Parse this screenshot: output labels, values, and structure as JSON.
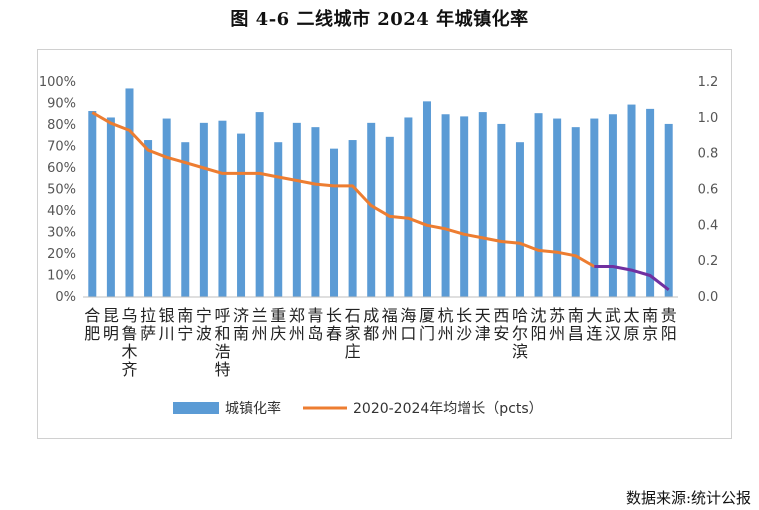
{
  "figure": {
    "title": "图 4-6   二线城市 2024 年城镇化率",
    "source": "数据来源:统计公报"
  },
  "colors": {
    "bar": "#5b9bd5",
    "line": "#ed7d31",
    "line_highlight": "#7030a0",
    "axis": "#bfbfbf"
  },
  "chart_data": {
    "type": "bar+line",
    "categories": [
      "合肥",
      "昆明",
      "乌鲁木齐",
      "拉萨",
      "银川",
      "南宁",
      "宁波",
      "呼和浩特",
      "济南",
      "兰州",
      "重庆",
      "郑州",
      "青岛",
      "长春",
      "石家庄",
      "成都",
      "福州",
      "海口",
      "厦门",
      "杭州",
      "长沙",
      "天津",
      "西安",
      "哈尔滨",
      "沈阳",
      "苏州",
      "南昌",
      "大连",
      "武汉",
      "太原",
      "南京",
      "贵阳"
    ],
    "series": [
      {
        "name": "城镇化率",
        "type": "bar",
        "axis": "left",
        "values": [
          86.5,
          83.5,
          97,
          73,
          83,
          72,
          81,
          82,
          76,
          86,
          72,
          81,
          79,
          69,
          73,
          81,
          74.5,
          83.5,
          91,
          85,
          84,
          86,
          80.5,
          72,
          85.5,
          83,
          79,
          83,
          85,
          89.5,
          87.5,
          80.5
        ]
      },
      {
        "name": "2020-2024年均增长（pcts）",
        "type": "line",
        "axis": "right",
        "values": [
          1.03,
          0.97,
          0.93,
          0.82,
          0.78,
          0.75,
          0.72,
          0.69,
          0.69,
          0.69,
          0.67,
          0.65,
          0.63,
          0.62,
          0.62,
          0.51,
          0.45,
          0.44,
          0.4,
          0.38,
          0.35,
          0.33,
          0.31,
          0.3,
          0.26,
          0.25,
          0.23,
          0.17,
          0.17,
          0.15,
          0.12,
          0.04
        ],
        "highlight_from_index": 27
      }
    ],
    "y_left": {
      "ticks": [
        "0%",
        "10%",
        "20%",
        "30%",
        "40%",
        "50%",
        "60%",
        "70%",
        "80%",
        "90%",
        "100%"
      ],
      "range": [
        0,
        100
      ]
    },
    "y_right": {
      "ticks": [
        "0.0",
        "0.2",
        "0.4",
        "0.6",
        "0.8",
        "1.0",
        "1.2"
      ],
      "range": [
        0,
        1.2
      ]
    },
    "legend_position": "bottom",
    "grid": false
  }
}
